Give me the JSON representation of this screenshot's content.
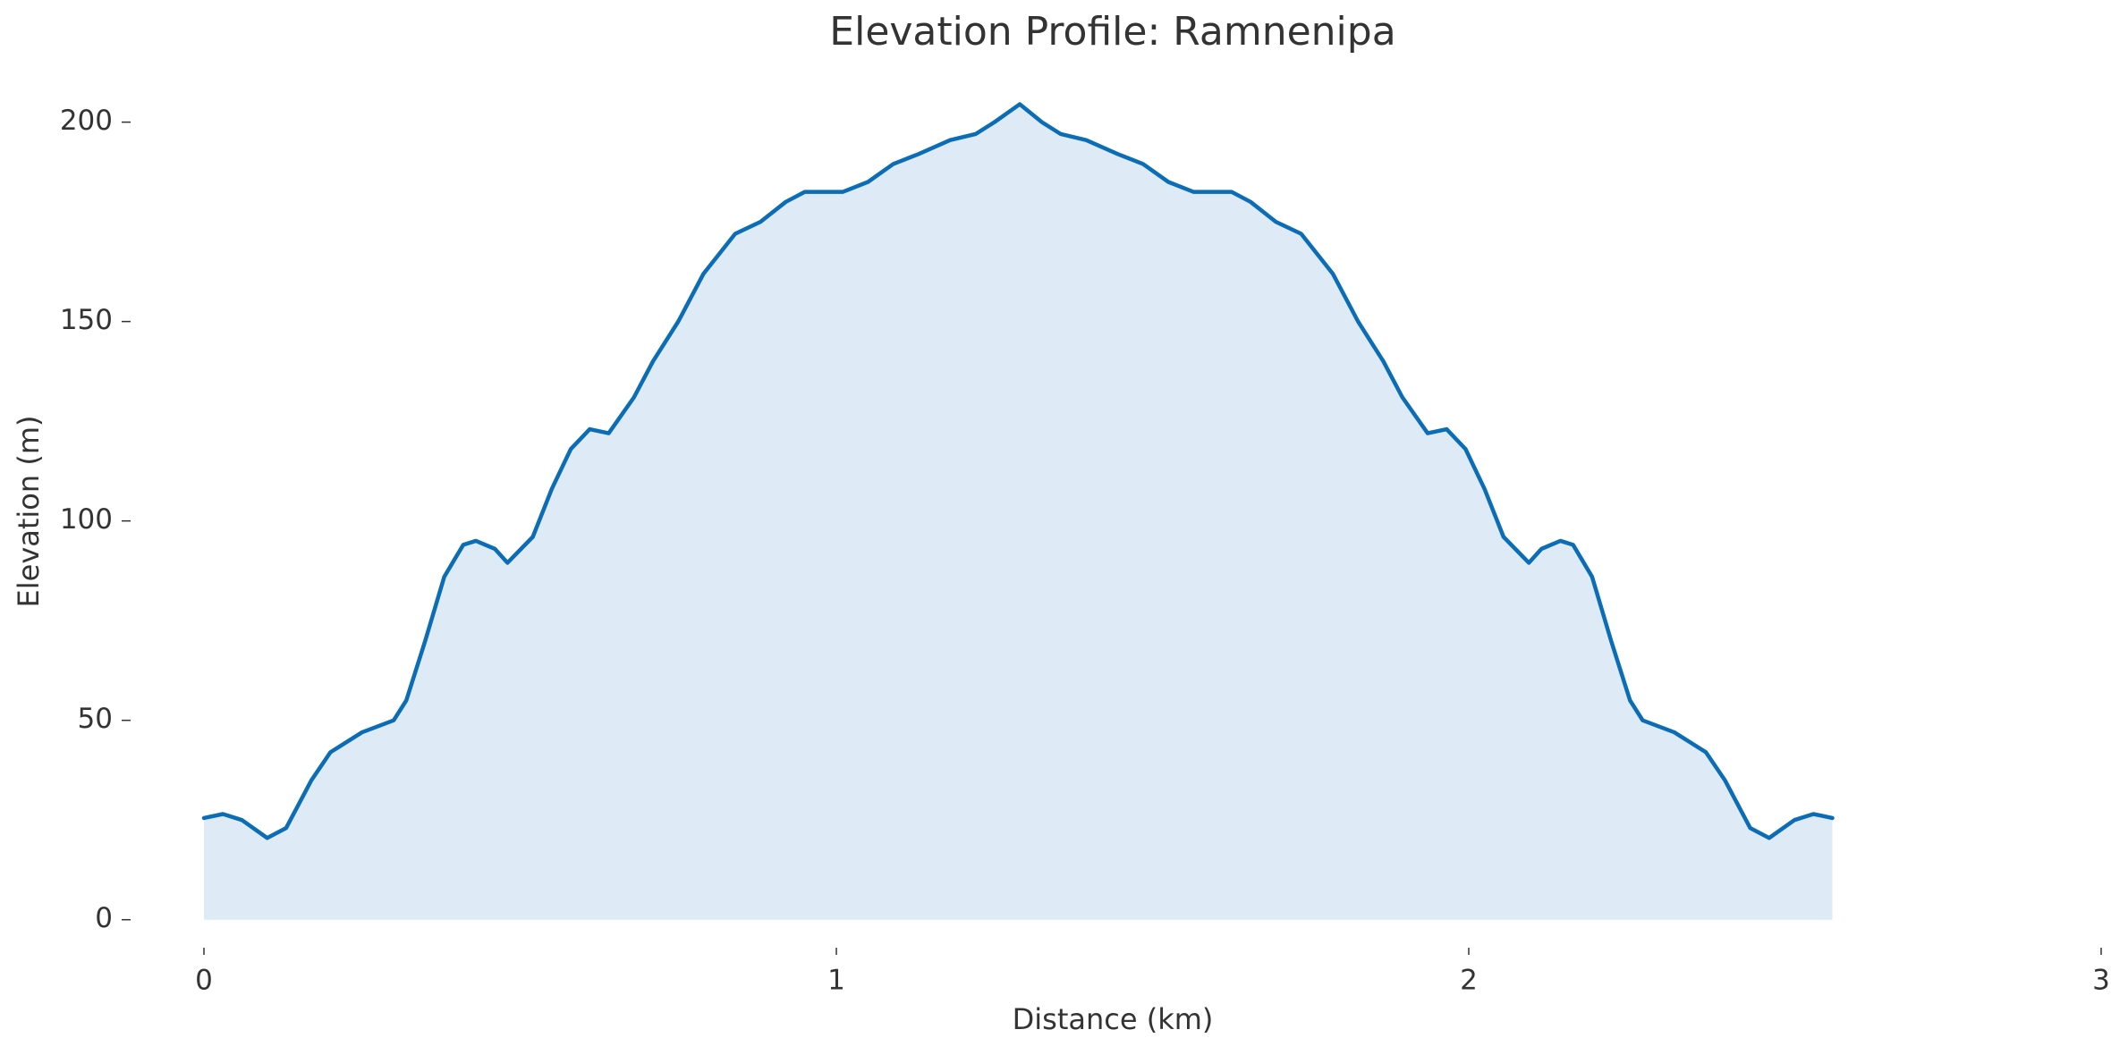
{
  "chart_data": {
    "type": "area",
    "title": "Elevation Profile: Ramnenipa",
    "xlabel": "Distance (km)",
    "ylabel": "Elevation (m)",
    "x": [
      0,
      0.03,
      0.06,
      0.1,
      0.13,
      0.17,
      0.2,
      0.25,
      0.3,
      0.32,
      0.35,
      0.38,
      0.41,
      0.43,
      0.46,
      0.48,
      0.52,
      0.55,
      0.58,
      0.61,
      0.64,
      0.68,
      0.71,
      0.75,
      0.79,
      0.84,
      0.88,
      0.92,
      0.95,
      1.01,
      1.05,
      1.09,
      1.13,
      1.18,
      1.22,
      1.25,
      1.29,
      1.325,
      1.355,
      1.395,
      1.445,
      1.485,
      1.525,
      1.565,
      1.625,
      1.655,
      1.695,
      1.735,
      1.785,
      1.825,
      1.865,
      1.895,
      1.935,
      1.965,
      1.995,
      2.025,
      2.055,
      2.095,
      2.115,
      2.145,
      2.165,
      2.195,
      2.225,
      2.255,
      2.275,
      2.325,
      2.375,
      2.405,
      2.445,
      2.475,
      2.515,
      2.545,
      2.575
    ],
    "series": [
      {
        "name": "Elevation",
        "color": "#0b6db5",
        "fill": "#deebf7",
        "values": [
          25.5,
          26.5,
          25,
          20.5,
          23,
          35,
          42,
          47,
          50,
          55,
          70,
          86,
          94,
          95,
          93,
          89.5,
          96,
          108,
          118,
          123,
          122,
          131,
          140,
          150,
          162,
          172,
          175,
          180,
          182.5,
          182.5,
          185,
          189.5,
          192,
          195.5,
          197,
          200,
          204.5,
          200,
          197,
          195.5,
          192,
          189.5,
          185,
          182.5,
          182.5,
          180,
          175,
          172,
          162,
          150,
          140,
          131,
          122,
          123,
          118,
          108,
          96,
          89.5,
          93,
          95,
          94,
          86,
          70,
          55,
          50,
          47,
          42,
          35,
          23,
          20.5,
          25,
          26.5,
          25.5
        ]
      }
    ],
    "xlim": [
      0,
      3
    ],
    "xticks": [
      0,
      1,
      2,
      3
    ],
    "ylim": [
      -5,
      210
    ],
    "yticks": [
      0,
      50,
      100,
      150,
      200
    ],
    "grid": false
  }
}
